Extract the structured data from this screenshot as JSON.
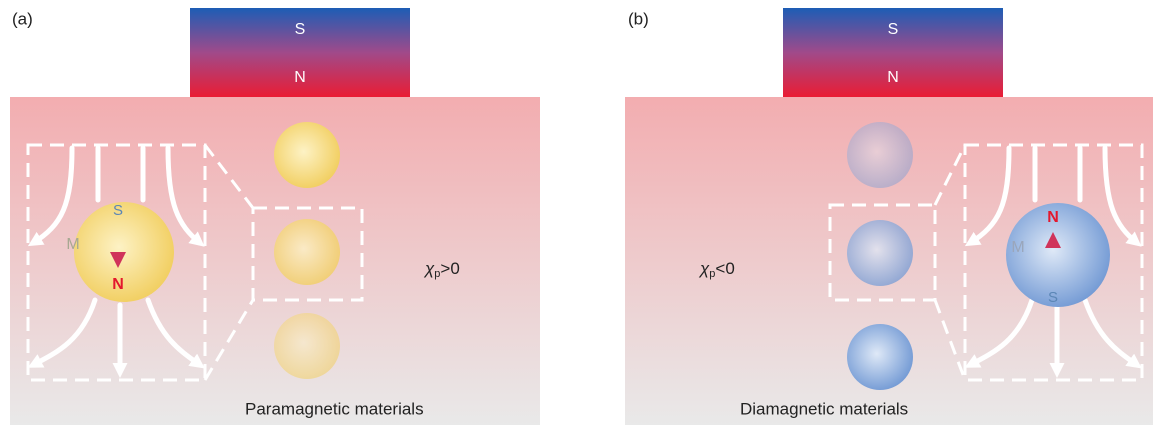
{
  "panels": [
    {
      "label": "(a)",
      "magnet": {
        "top": "S",
        "bottom": "N"
      },
      "sphere": {
        "moment": "M",
        "top": "S",
        "bottom": "N"
      },
      "susceptibility": {
        "symbol": "χ",
        "subscript": "p",
        "relation": ">0"
      },
      "caption": "Paramagnetic materials"
    },
    {
      "label": "(b)",
      "magnet": {
        "top": "S",
        "bottom": "N"
      },
      "sphere": {
        "moment": "M",
        "top": "N",
        "bottom": "S"
      },
      "susceptibility": {
        "symbol": "χ",
        "subscript": "p",
        "relation": "<0"
      },
      "caption": "Diamagnetic materials"
    }
  ]
}
